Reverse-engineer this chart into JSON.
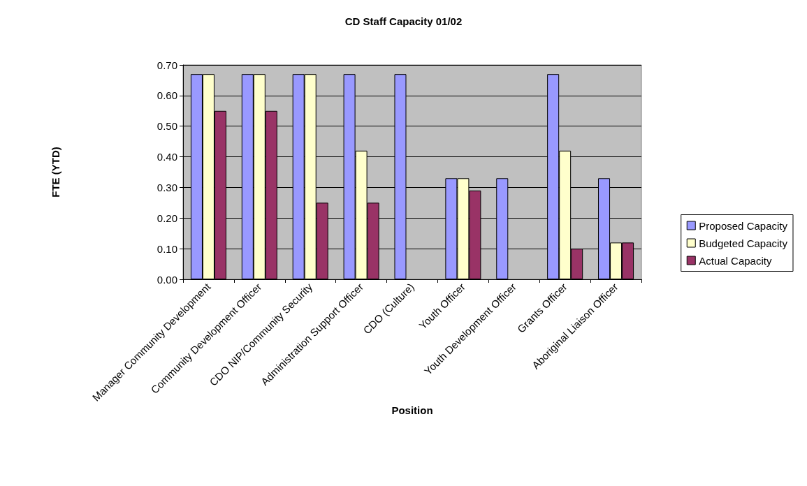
{
  "chart_data": {
    "type": "bar",
    "title": "CD Staff Capacity 01/02",
    "xlabel": "Position",
    "ylabel": "FTE (YTD)",
    "categories": [
      "Manager Community Development",
      "Community Development Officer",
      "CDO NIP/Community Security",
      "Administration Support Officer",
      "CDO (Culture)",
      "Youth Officer",
      "Youth Development Officer",
      "Grants Officer",
      "Aboriginal Liaison Officer"
    ],
    "series": [
      {
        "name": "Proposed Capacity",
        "color": "#9999ff",
        "values": [
          0.67,
          0.67,
          0.67,
          0.67,
          0.67,
          0.33,
          0.33,
          0.67,
          0.33
        ]
      },
      {
        "name": "Budgeted Capacity",
        "color": "#ffffcc",
        "values": [
          0.67,
          0.67,
          0.67,
          0.42,
          null,
          0.33,
          null,
          0.42,
          0.12
        ]
      },
      {
        "name": "Actual Capacity",
        "color": "#993366",
        "values": [
          0.55,
          0.55,
          0.25,
          0.25,
          null,
          0.29,
          null,
          0.1,
          0.12
        ]
      }
    ],
    "ylim": [
      0,
      0.7
    ],
    "yticks": [
      {
        "value": 0,
        "label": "0.00"
      },
      {
        "value": 0.1,
        "label": "0.10"
      },
      {
        "value": 0.2,
        "label": "0.20"
      },
      {
        "value": 0.3,
        "label": "0.30"
      },
      {
        "value": 0.4,
        "label": "0.40"
      },
      {
        "value": 0.5,
        "label": "0.50"
      },
      {
        "value": 0.6,
        "label": "0.60"
      },
      {
        "value": 0.7,
        "label": "0.70"
      }
    ],
    "grid": "y",
    "legend": "right"
  }
}
